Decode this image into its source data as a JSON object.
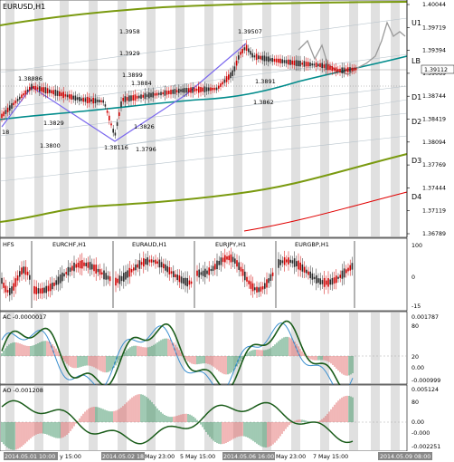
{
  "main_chart": {
    "title": "EURUSD,H1",
    "price_labels": [
      "1.40044",
      "1.39719",
      "1.39394",
      "1.39069",
      "1.38744",
      "1.38419",
      "1.38094",
      "1.37769",
      "1.37444",
      "1.37119",
      "1.36789"
    ],
    "current_price": "1.39112",
    "levels": [
      "U1",
      "LB",
      "D1",
      "D2",
      "D3",
      "D4"
    ],
    "annotations": {
      "p1_38886": "1.38886",
      "p1_3884": "1.3884",
      "p1_39507": "1.39507",
      "p1_38116": "1.38116",
      "p1_3958": "1.3958",
      "p1_3929": "1.3929",
      "p1_3899": "1.3899",
      "p1_3891": "1.3891",
      "p1_3862": "1.3862",
      "p1_3829": "1.3829",
      "p1_3826": "1.3826",
      "p1_3800": "1.3800",
      "p1_3796": "1.3796",
      "p18": "18"
    }
  },
  "mini_panel": {
    "title": "HFS",
    "symbols": [
      "EURCHF,H1",
      "EURAUD,H1",
      "EURJPY,H1",
      "EURGBP,H1"
    ],
    "axis": [
      "100",
      "0",
      "-15"
    ]
  },
  "ac_panel": {
    "title": "AC -0.0000017",
    "axis": [
      "0.001787",
      "80",
      "20",
      "0.00",
      "-0.000999"
    ]
  },
  "ao_panel": {
    "title": "AO -0.001208",
    "axis": [
      "0.005124",
      "80",
      "0.00",
      "-0.000",
      "-0.002251"
    ]
  },
  "time_axis": [
    "2014.05.01 10:00",
    "y 15:00",
    "2014.05.02 18:00",
    "May 23:00",
    "5 May 15:00",
    "2014.05.06 16:00",
    "May 23:00",
    "7 May 15:00",
    "2014.05.09 08:00"
  ],
  "colors": {
    "bull": "#2a2a2a",
    "bear": "#d00000",
    "ma_teal": "#008b8b",
    "channel_olive": "#6b8e00",
    "red_line": "#e00000",
    "purple_zigzag": "#7b68ee",
    "ac_green": "#1a5c1a",
    "ac_blue": "#3a8fcf",
    "hist_green": "#2e8b57",
    "hist_red": "#e06060"
  }
}
